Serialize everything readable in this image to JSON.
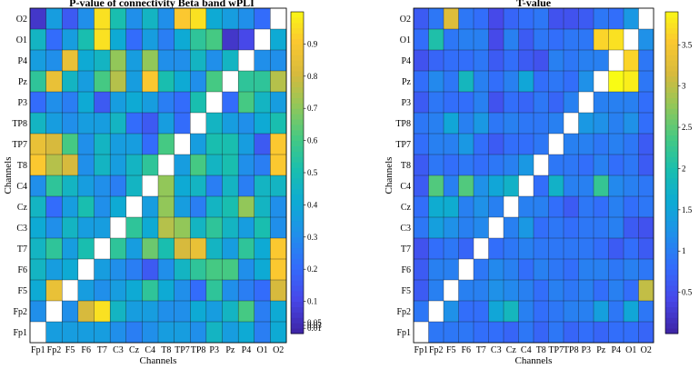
{
  "chart_data": [
    {
      "type": "heatmap",
      "title": "P-value of connectivity Beta band wPLI",
      "xlabel": "Channels",
      "ylabel": "Channels",
      "x_categories": [
        "Fp1",
        "Fp2",
        "F5",
        "F6",
        "T7",
        "C3",
        "Cz",
        "C4",
        "T8",
        "TP7",
        "TP8",
        "P3",
        "Pz",
        "P4",
        "O1",
        "O2"
      ],
      "y_categories_bottom_to_top": [
        "Fp1",
        "Fp2",
        "F5",
        "F6",
        "T7",
        "C3",
        "Cz",
        "C4",
        "T8",
        "TP7",
        "TP8",
        "P3",
        "Pz",
        "P4",
        "O1",
        "O2"
      ],
      "colormap": "parula",
      "color_range": [
        0,
        1
      ],
      "colorbar_ticks": [
        0.01,
        0.03,
        0.05,
        0.1,
        0.2,
        0.3,
        0.4,
        0.5,
        0.6,
        0.7,
        0.8,
        0.9
      ],
      "colorbar_scale": "nonlinear",
      "diagonal_color": "#ffffff",
      "matrix_rows_top_to_bottom": [
        [
          0.05,
          0.35,
          0.15,
          0.3,
          0.95,
          0.5,
          0.3,
          0.45,
          0.3,
          0.9,
          0.95,
          0.4,
          0.35,
          0.3,
          0.2,
          1.0
        ],
        [
          0.45,
          0.2,
          0.35,
          0.5,
          0.95,
          0.4,
          0.2,
          0.35,
          0.25,
          0.4,
          0.55,
          0.6,
          0.05,
          0.1,
          1.0,
          0.4
        ],
        [
          0.35,
          0.3,
          0.85,
          0.4,
          0.45,
          0.7,
          0.35,
          0.7,
          0.3,
          0.3,
          0.45,
          0.3,
          0.45,
          1.0,
          0.3,
          0.3
        ],
        [
          0.55,
          0.85,
          0.45,
          0.35,
          0.6,
          0.75,
          0.35,
          0.9,
          0.5,
          0.4,
          0.3,
          0.6,
          1.0,
          0.55,
          0.55,
          0.75
        ],
        [
          0.2,
          0.3,
          0.25,
          0.4,
          0.15,
          0.35,
          0.4,
          0.35,
          0.25,
          0.2,
          0.5,
          1.0,
          0.2,
          0.6,
          0.45,
          0.35
        ],
        [
          0.45,
          0.35,
          0.3,
          0.35,
          0.35,
          0.45,
          0.2,
          0.15,
          0.35,
          0.2,
          1.0,
          0.45,
          0.35,
          0.3,
          0.4,
          0.5
        ],
        [
          0.85,
          0.8,
          0.6,
          0.3,
          0.45,
          0.35,
          0.35,
          0.2,
          0.6,
          1.0,
          0.35,
          0.5,
          0.5,
          0.35,
          0.15,
          0.9
        ],
        [
          0.9,
          0.75,
          0.8,
          0.3,
          0.45,
          0.35,
          0.45,
          0.55,
          1.0,
          0.35,
          0.6,
          0.45,
          0.5,
          0.3,
          0.25,
          0.9
        ],
        [
          0.3,
          0.55,
          0.45,
          0.35,
          0.3,
          0.25,
          0.45,
          1.0,
          0.7,
          0.4,
          0.45,
          0.25,
          0.45,
          0.25,
          0.45,
          0.45
        ],
        [
          0.45,
          0.2,
          0.35,
          0.5,
          0.3,
          0.4,
          1.0,
          0.35,
          0.7,
          0.35,
          0.25,
          0.45,
          0.5,
          0.7,
          0.45,
          0.3
        ],
        [
          0.4,
          0.3,
          0.45,
          0.35,
          0.35,
          1.0,
          0.55,
          0.4,
          0.75,
          0.7,
          0.45,
          0.55,
          0.45,
          0.35,
          0.5,
          0.3
        ],
        [
          0.45,
          0.55,
          0.35,
          0.5,
          1.0,
          0.55,
          0.35,
          0.65,
          0.5,
          0.8,
          0.85,
          0.45,
          0.35,
          0.55,
          0.4,
          0.9
        ],
        [
          0.45,
          0.35,
          0.4,
          1.0,
          0.35,
          0.3,
          0.25,
          0.15,
          0.3,
          0.45,
          0.55,
          0.6,
          0.6,
          0.3,
          0.4,
          0.9
        ],
        [
          0.4,
          0.85,
          1.0,
          0.35,
          0.3,
          0.35,
          0.4,
          0.55,
          0.4,
          0.3,
          0.2,
          0.55,
          0.3,
          0.25,
          0.2,
          0.8
        ],
        [
          0.3,
          1.0,
          0.3,
          0.8,
          0.95,
          0.45,
          0.35,
          0.35,
          0.3,
          0.3,
          0.4,
          0.35,
          0.45,
          0.6,
          0.25,
          0.4
        ],
        [
          1.0,
          0.35,
          0.35,
          0.35,
          0.35,
          0.3,
          0.25,
          0.3,
          0.35,
          0.35,
          0.3,
          0.45,
          0.35,
          0.4,
          0.25,
          0.4
        ]
      ]
    },
    {
      "type": "heatmap",
      "title": "T-value",
      "xlabel": "Channels",
      "ylabel": "Channels",
      "x_categories": [
        "Fp1",
        "Fp2",
        "F5",
        "F6",
        "T7",
        "C3",
        "Cz",
        "C4",
        "T8",
        "TP7",
        "TP8",
        "P3",
        "Pz",
        "P4",
        "O1",
        "O2"
      ],
      "y_categories_bottom_to_top": [
        "Fp1",
        "Fp2",
        "F5",
        "F6",
        "T7",
        "C3",
        "Cz",
        "C4",
        "T8",
        "TP7",
        "TP8",
        "P3",
        "Pz",
        "P4",
        "O1",
        "O2"
      ],
      "colormap": "parula",
      "color_range": [
        0,
        3.9
      ],
      "colorbar_ticks": [
        0.5,
        1,
        1.5,
        2,
        2.5,
        3,
        3.5
      ],
      "colorbar_scale": "linear",
      "diagonal_color": "#ffffff",
      "matrix_rows_top_to_bottom": [
        [
          0.6,
          0.9,
          3.2,
          0.9,
          0.8,
          0.4,
          0.7,
          0.8,
          0.9,
          0.5,
          0.5,
          0.6,
          0.9,
          0.8,
          1.3,
          3.9
        ],
        [
          0.8,
          2.0,
          0.9,
          1.0,
          1.0,
          0.4,
          1.0,
          0.6,
          0.9,
          0.8,
          0.9,
          0.9,
          3.6,
          3.7,
          3.9,
          1.2
        ],
        [
          0.5,
          0.7,
          0.8,
          0.8,
          0.9,
          0.6,
          0.8,
          0.6,
          0.5,
          1.0,
          0.9,
          1.0,
          1.0,
          3.9,
          3.6,
          0.9
        ],
        [
          0.8,
          1.1,
          0.9,
          1.8,
          1.0,
          0.8,
          1.0,
          1.5,
          0.8,
          0.9,
          0.8,
          1.2,
          3.9,
          3.9,
          3.8,
          0.9
        ],
        [
          0.6,
          0.9,
          0.8,
          0.8,
          1.0,
          0.5,
          0.8,
          0.7,
          0.9,
          0.7,
          1.0,
          3.9,
          1.0,
          1.0,
          1.0,
          0.8
        ],
        [
          0.9,
          1.0,
          1.5,
          1.0,
          1.3,
          0.9,
          1.0,
          0.9,
          0.9,
          1.0,
          3.9,
          1.3,
          1.2,
          1.0,
          1.2,
          0.8
        ],
        [
          0.8,
          1.0,
          1.0,
          1.3,
          0.8,
          0.6,
          0.8,
          0.8,
          0.9,
          3.9,
          1.0,
          1.0,
          0.9,
          1.0,
          0.9,
          0.6
        ],
        [
          0.6,
          0.9,
          0.8,
          0.9,
          0.8,
          0.9,
          1.0,
          1.3,
          3.9,
          0.9,
          0.9,
          0.8,
          1.0,
          0.8,
          0.9,
          0.6
        ],
        [
          0.6,
          2.4,
          1.0,
          2.4,
          1.2,
          1.5,
          1.7,
          3.9,
          0.8,
          1.7,
          1.0,
          1.0,
          2.2,
          1.1,
          1.0,
          0.9
        ],
        [
          0.8,
          1.6,
          1.6,
          1.0,
          1.2,
          1.0,
          3.9,
          1.0,
          1.0,
          0.8,
          0.6,
          0.9,
          0.8,
          1.0,
          0.8,
          0.9
        ],
        [
          0.9,
          1.4,
          1.2,
          1.0,
          1.1,
          3.9,
          1.0,
          1.3,
          0.8,
          0.9,
          0.8,
          0.9,
          0.9,
          1.0,
          0.6,
          0.5
        ],
        [
          0.5,
          0.8,
          0.9,
          0.7,
          3.9,
          0.8,
          0.9,
          1.0,
          0.9,
          0.9,
          0.9,
          0.9,
          0.8,
          0.6,
          0.8,
          0.6
        ],
        [
          0.6,
          1.0,
          1.0,
          3.9,
          0.9,
          1.1,
          1.0,
          0.8,
          1.0,
          0.9,
          0.8,
          1.0,
          1.0,
          0.9,
          1.0,
          0.9
        ],
        [
          0.6,
          1.0,
          3.9,
          1.0,
          1.0,
          1.2,
          1.1,
          1.0,
          0.8,
          1.0,
          0.9,
          1.0,
          0.8,
          1.0,
          0.8,
          3.0
        ],
        [
          0.9,
          3.9,
          1.2,
          0.8,
          0.8,
          1.5,
          1.8,
          1.0,
          0.8,
          0.9,
          1.0,
          1.0,
          1.4,
          0.9,
          1.5,
          0.9
        ],
        [
          3.9,
          0.9,
          0.9,
          0.9,
          0.8,
          0.8,
          0.7,
          0.9,
          0.7,
          0.9,
          0.7,
          0.8,
          0.7,
          0.8,
          0.8,
          0.7
        ]
      ]
    }
  ]
}
